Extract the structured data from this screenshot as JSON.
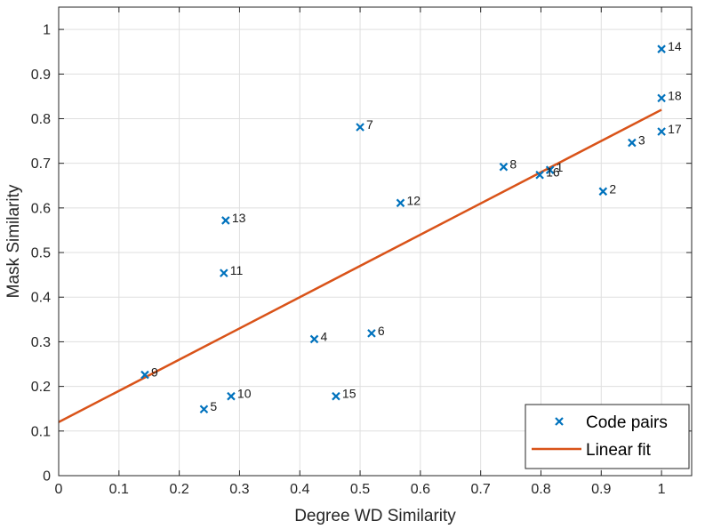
{
  "chart_data": {
    "type": "scatter",
    "title": "",
    "xlabel": "Degree WD Similarity",
    "ylabel": "Mask Similarity",
    "xlim": [
      0,
      1.05
    ],
    "ylim": [
      0,
      1.05
    ],
    "xticks": [
      0,
      0.1,
      0.2,
      0.3,
      0.4,
      0.5,
      0.6,
      0.7,
      0.8,
      0.9,
      1
    ],
    "yticks": [
      0,
      0.1,
      0.2,
      0.3,
      0.4,
      0.5,
      0.6,
      0.7,
      0.8,
      0.9,
      1
    ],
    "xtick_labels": [
      "0",
      "0.1",
      "0.2",
      "0.3",
      "0.4",
      "0.5",
      "0.6",
      "0.7",
      "0.8",
      "0.9",
      "1"
    ],
    "ytick_labels": [
      "0",
      "0.1",
      "0.2",
      "0.3",
      "0.4",
      "0.5",
      "0.6",
      "0.7",
      "0.8",
      "0.9",
      "1"
    ],
    "grid": true,
    "legend_position": "bottom-right",
    "series": [
      {
        "name": "Code pairs",
        "kind": "scatter",
        "marker": "x",
        "color": "#0072BD",
        "points": [
          {
            "label": "1",
            "x": 0.815,
            "y": 0.685
          },
          {
            "label": "2",
            "x": 0.903,
            "y": 0.637
          },
          {
            "label": "3",
            "x": 0.951,
            "y": 0.746
          },
          {
            "label": "4",
            "x": 0.424,
            "y": 0.306
          },
          {
            "label": "5",
            "x": 0.241,
            "y": 0.149
          },
          {
            "label": "6",
            "x": 0.519,
            "y": 0.319
          },
          {
            "label": "7",
            "x": 0.5,
            "y": 0.781
          },
          {
            "label": "8",
            "x": 0.738,
            "y": 0.692
          },
          {
            "label": "9",
            "x": 0.143,
            "y": 0.226
          },
          {
            "label": "10",
            "x": 0.286,
            "y": 0.178
          },
          {
            "label": "11",
            "x": 0.274,
            "y": 0.454
          },
          {
            "label": "12",
            "x": 0.567,
            "y": 0.611
          },
          {
            "label": "13",
            "x": 0.277,
            "y": 0.572
          },
          {
            "label": "14",
            "x": 1.0,
            "y": 0.956
          },
          {
            "label": "15",
            "x": 0.46,
            "y": 0.178
          },
          {
            "label": "16",
            "x": 0.798,
            "y": 0.674
          },
          {
            "label": "17",
            "x": 1.0,
            "y": 0.771
          },
          {
            "label": "18",
            "x": 1.0,
            "y": 0.846
          }
        ]
      },
      {
        "name": "Linear fit",
        "kind": "line",
        "color": "#D95319",
        "x": [
          0,
          1.0
        ],
        "y": [
          0.12,
          0.82
        ]
      }
    ]
  }
}
